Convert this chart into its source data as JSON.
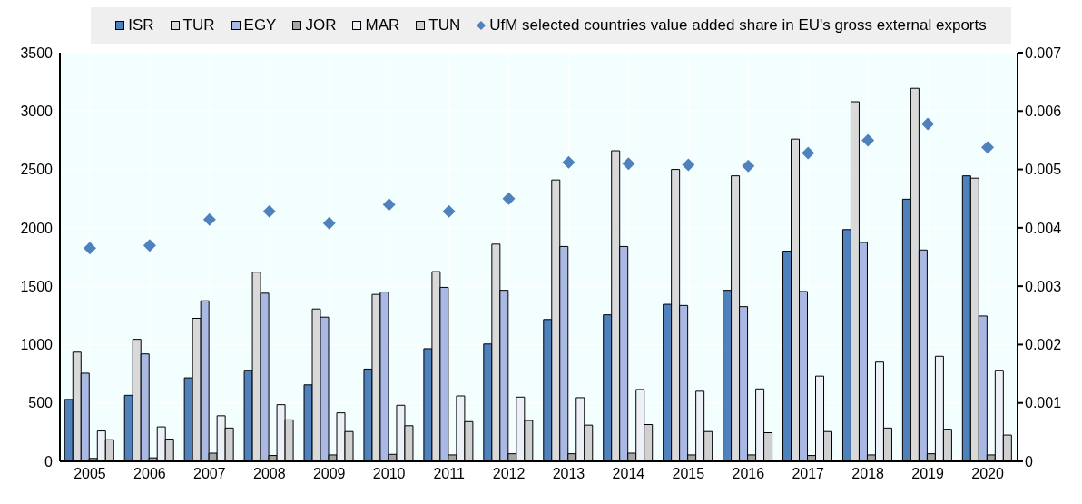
{
  "chart_data": {
    "type": "bar",
    "categories": [
      "2005",
      "2006",
      "2007",
      "2008",
      "2009",
      "2010",
      "2011",
      "2012",
      "2013",
      "2014",
      "2015",
      "2016",
      "2017",
      "2018",
      "2019",
      "2020"
    ],
    "series": [
      {
        "name": "ISR",
        "color": "#4f81bd",
        "values": [
          530,
          565,
          715,
          780,
          655,
          790,
          965,
          1005,
          1215,
          1255,
          1345,
          1465,
          1800,
          1985,
          2245,
          2445
        ]
      },
      {
        "name": "TUR",
        "color": "#d9d9d9",
        "values": [
          935,
          1045,
          1225,
          1620,
          1305,
          1430,
          1625,
          1860,
          2410,
          2660,
          2500,
          2445,
          2760,
          3080,
          3195,
          2425
        ]
      },
      {
        "name": "EGY",
        "color": "#a9b9e3",
        "values": [
          755,
          920,
          1375,
          1440,
          1235,
          1450,
          1490,
          1465,
          1840,
          1840,
          1335,
          1325,
          1455,
          1875,
          1810,
          1245
        ]
      },
      {
        "name": "JOR",
        "color": "#a6a6a6",
        "values": [
          25,
          30,
          70,
          50,
          55,
          60,
          55,
          65,
          65,
          70,
          55,
          55,
          50,
          55,
          65,
          55
        ]
      },
      {
        "name": "MAR",
        "color": "#eef0f8",
        "values": [
          260,
          295,
          390,
          485,
          415,
          480,
          560,
          550,
          545,
          615,
          600,
          620,
          730,
          850,
          900,
          780
        ]
      },
      {
        "name": "TUN",
        "color": "#d0d0d0",
        "values": [
          185,
          190,
          285,
          355,
          255,
          305,
          340,
          350,
          310,
          315,
          255,
          245,
          255,
          285,
          275,
          225
        ]
      },
      {
        "name": "UfM selected countries value added share in EU's gross external exports",
        "type": "scatter",
        "axis": "y2",
        "color": "#4f81bd",
        "marker": "diamond",
        "values": [
          0.00365,
          0.0037,
          0.00414,
          0.00428,
          0.00408,
          0.0044,
          0.00428,
          0.0045,
          0.00512,
          0.0051,
          0.00508,
          0.00506,
          0.00528,
          0.0055,
          0.00578,
          0.00538
        ]
      }
    ],
    "ylim": [
      0,
      3500
    ],
    "yticks": [
      0,
      500,
      1000,
      1500,
      2000,
      2500,
      3000,
      3500
    ],
    "y2lim": [
      0,
      0.007
    ],
    "y2ticks": [
      0,
      0.001,
      0.002,
      0.003,
      0.004,
      0.005,
      0.006,
      0.007
    ],
    "grid": true,
    "legend": "top"
  }
}
